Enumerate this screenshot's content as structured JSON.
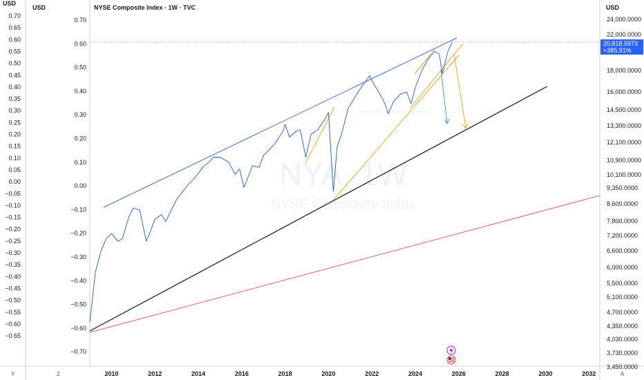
{
  "header": {
    "title": "NYSE Composite Index · 1W · TVC",
    "left_outer_unit": "USD",
    "left_inner_unit": "USD",
    "right_unit": "USD"
  },
  "watermark": {
    "symbol": "NYA, 1W",
    "name": "NYSE Composite Index"
  },
  "price_label": {
    "price": "20,818.5973",
    "change": "+385.91%",
    "color": "#2962ff"
  },
  "corner_labels": {
    "left": "Y",
    "mid": "Z",
    "right": "A"
  },
  "colors": {
    "price_line": "#1e56d9",
    "channel": "#3a6fd8",
    "support": "#111111",
    "red_trend": "#e35c6b",
    "orange": "#f5a623",
    "blue_arrow": "#4a90e2"
  },
  "chart_data": {
    "type": "line",
    "title": "NYSE Composite Index · 1W · TVC",
    "xlabel": "",
    "ylabel": "USD",
    "x_ticks": [
      "2010",
      "2012",
      "2014",
      "2016",
      "2018",
      "2020",
      "2022",
      "2024",
      "2026",
      "2028",
      "2030",
      "2032"
    ],
    "left_outer_ticks": [
      "0.70",
      "0.65",
      "0.60",
      "0.55",
      "0.50",
      "0.45",
      "0.40",
      "0.35",
      "0.30",
      "0.25",
      "0.20",
      "0.15",
      "0.10",
      "0.05",
      "0.00",
      "−0.05",
      "−0.10",
      "−0.15",
      "−0.20",
      "−0.25",
      "−0.30",
      "−0.35",
      "−0.40",
      "−0.45",
      "−0.50",
      "−0.55",
      "−0.60",
      "−0.65"
    ],
    "left_inner_ticks": [
      "0.70",
      "0.60",
      "0.50",
      "0.40",
      "0.30",
      "0.20",
      "0.10",
      "0.00",
      "−0.10",
      "−0.20",
      "−0.30",
      "−0.40",
      "−0.50",
      "−0.60",
      "−0.70"
    ],
    "right_ticks": [
      "24,000.0000",
      "22,000.0000",
      "18,000.0000",
      "16,000.0000",
      "14,500.0000",
      "13,300.0000",
      "12,100.0000",
      "10,900.0000",
      "10,100.0000",
      "9,350.0000",
      "8,600.0000",
      "7,800.0000",
      "7,200.0000",
      "6,600.0000",
      "6,000.0000",
      "5,500.0000",
      "5,100.0000",
      "4,700.0000",
      "4,350.0000",
      "4,030.0000",
      "3,730.0000",
      "3,450.0000"
    ],
    "scale": "log",
    "ylim": [
      3450,
      24000
    ],
    "xlim": [
      2009.0,
      2032.5
    ],
    "grid": false,
    "last_price": 20818.5973,
    "change_pct": 385.91,
    "series": [
      {
        "x": [
          2009.0,
          2009.1,
          2009.25,
          2009.5,
          2009.75,
          2010.0,
          2010.3,
          2010.5,
          2010.8,
          2011.0,
          2011.3,
          2011.6,
          2011.75,
          2012.0,
          2012.3,
          2012.5,
          2012.8,
          2013.0,
          2013.5,
          2013.9,
          2014.2,
          2014.5,
          2014.7,
          2015.0,
          2015.4,
          2015.7,
          2015.9,
          2016.1,
          2016.5,
          2016.8,
          2017.0,
          2017.5,
          2017.9,
          2018.0,
          2018.2,
          2018.5,
          2018.7,
          2018.95,
          2019.2,
          2019.5,
          2019.8,
          2020.0,
          2020.15,
          2020.22,
          2020.4,
          2020.6,
          2020.9,
          2021.2,
          2021.5,
          2021.9,
          2022.0,
          2022.4,
          2022.6,
          2022.75,
          2023.0,
          2023.3,
          2023.6,
          2023.8,
          2024.0,
          2024.3,
          2024.6,
          2024.9,
          2025.1,
          2025.25,
          2025.5,
          2025.7
        ],
        "values": [
          4400,
          4900,
          5800,
          6500,
          7000,
          7200,
          6900,
          7000,
          7900,
          8300,
          8200,
          6900,
          7200,
          7800,
          8000,
          7700,
          8300,
          8700,
          9400,
          9900,
          10400,
          10700,
          11000,
          11000,
          10700,
          10000,
          10300,
          9300,
          10500,
          10400,
          11100,
          11800,
          12700,
          13200,
          12300,
          12700,
          12800,
          11000,
          12500,
          12800,
          13500,
          14100,
          10400,
          9100,
          11700,
          12500,
          14400,
          15300,
          16200,
          17300,
          16800,
          15500,
          14800,
          14000,
          15000,
          15600,
          15800,
          14800,
          16200,
          17800,
          19000,
          19800,
          19500,
          17500,
          19800,
          20818.5973
        ]
      }
    ]
  }
}
